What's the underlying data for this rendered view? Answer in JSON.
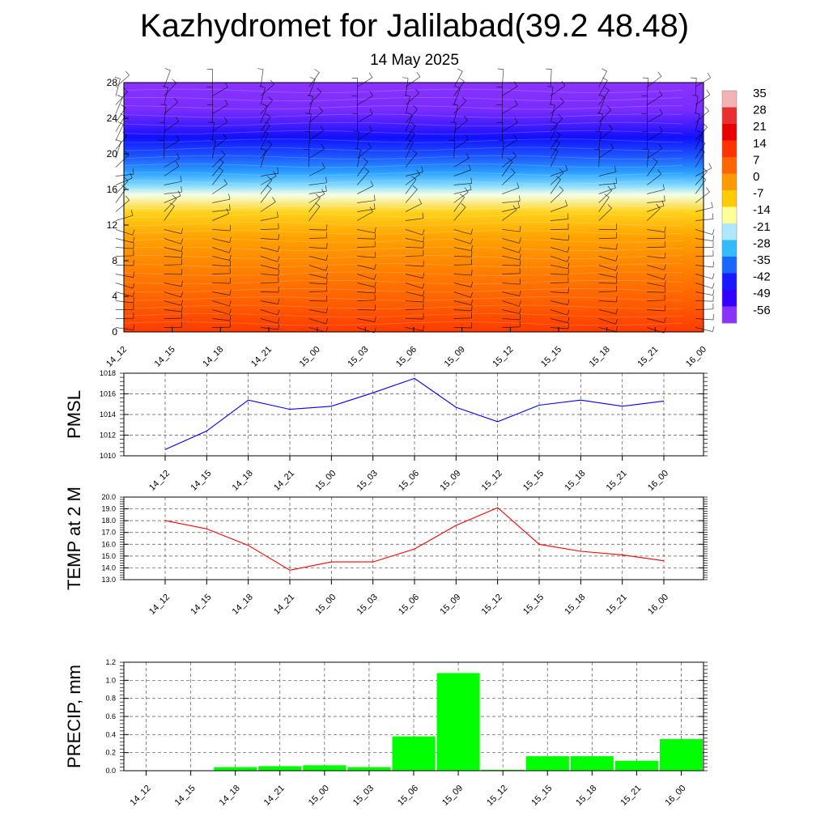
{
  "title": "Kazhydromet for Jalilabad(39.2 48.48)",
  "subtitle": "14 May 2025",
  "colors": {
    "pmsl_line": "#0000ff",
    "temp_line": "#ff0000",
    "precip_bar": "#00ff00",
    "axis": "#000000",
    "grid": "#555555"
  },
  "chart_data": [
    {
      "id": "upper-air",
      "type": "heatmap",
      "title": "",
      "ylabel": "",
      "xlabel": "",
      "ylim": [
        0,
        28
      ],
      "yticks": [
        "0",
        "4",
        "8",
        "12",
        "16",
        "20",
        "24",
        "28"
      ],
      "categories": [
        "14_12",
        "14_15",
        "14_18",
        "14_21",
        "15_00",
        "15_03",
        "15_06",
        "15_09",
        "15_12",
        "15_15",
        "15_18",
        "15_21",
        "16_00"
      ],
      "colorbar": {
        "labels": [
          "35",
          "28",
          "21",
          "14",
          "7",
          "0",
          "-7",
          "-14",
          "-21",
          "-28",
          "-35",
          "-42",
          "-49",
          "-56"
        ],
        "colors": [
          "#f2b3b3",
          "#e83030",
          "#e60000",
          "#ff3300",
          "#ff6600",
          "#ff9900",
          "#ffcc00",
          "#ffff99",
          "#aee8ff",
          "#33bbff",
          "#1a66ff",
          "#1a1aff",
          "#3300ff",
          "#8a33ff"
        ]
      },
      "wind_barbs": true
    },
    {
      "id": "pmsl",
      "type": "line",
      "title": "",
      "ylabel": "PMSL",
      "xlabel": "",
      "ylim": [
        1010,
        1018
      ],
      "yticks": [
        "1010",
        "1012",
        "1014",
        "1016",
        "1018"
      ],
      "categories": [
        "14_12",
        "14_15",
        "14_18",
        "14_21",
        "15_00",
        "15_03",
        "15_06",
        "15_09",
        "15_12",
        "15_15",
        "15_18",
        "15_21",
        "16_00"
      ],
      "values": [
        1010.6,
        1012.4,
        1015.4,
        1014.5,
        1014.8,
        1016.1,
        1017.5,
        1014.7,
        1013.3,
        1014.9,
        1015.4,
        1014.8,
        1015.3
      ],
      "grid": true
    },
    {
      "id": "temp",
      "type": "line",
      "title": "",
      "ylabel": "TEMP at 2 M",
      "xlabel": "",
      "ylim": [
        13.0,
        20.0
      ],
      "yticks": [
        "13.0",
        "14.0",
        "15.0",
        "16.0",
        "17.0",
        "18.0",
        "19.0",
        "20.0"
      ],
      "categories": [
        "14_12",
        "14_15",
        "14_18",
        "14_21",
        "15_00",
        "15_03",
        "15_06",
        "15_09",
        "15_12",
        "15_15",
        "15_18",
        "15_21",
        "16_00"
      ],
      "values": [
        18.0,
        17.3,
        15.9,
        13.8,
        14.5,
        14.5,
        15.6,
        17.6,
        19.1,
        16.0,
        15.4,
        15.1,
        14.6
      ],
      "grid": true
    },
    {
      "id": "precip",
      "type": "bar",
      "title": "",
      "ylabel": "PRECIP, mm",
      "xlabel": "",
      "ylim": [
        0.0,
        1.2
      ],
      "yticks": [
        "0.0",
        "0.2",
        "0.4",
        "0.6",
        "0.8",
        "1.0",
        "1.2"
      ],
      "categories": [
        "14_12",
        "14_15",
        "14_18",
        "14_21",
        "15_00",
        "15_03",
        "15_06",
        "15_09",
        "15_12",
        "15_15",
        "15_18",
        "15_21",
        "16_00"
      ],
      "values": [
        0.0,
        0.0,
        0.04,
        0.05,
        0.06,
        0.04,
        0.38,
        1.08,
        0.01,
        0.16,
        0.16,
        0.11,
        0.35
      ],
      "grid": true
    }
  ]
}
